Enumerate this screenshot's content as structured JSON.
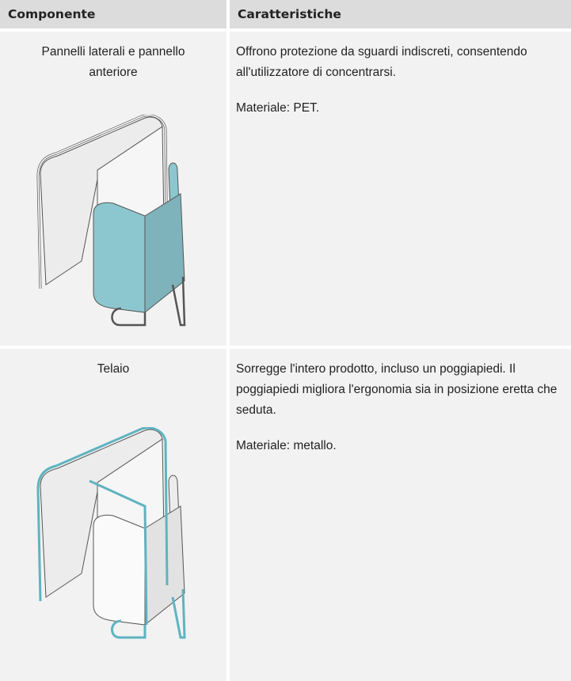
{
  "table": {
    "headers": [
      "Componente",
      "Caratteristiche"
    ],
    "rows": [
      {
        "component": "Pannelli laterali e pannello anteriore",
        "description": [
          "Offrono protezione da sguardi indiscreti, consentendo all'utilizzatore di concentrarsi.",
          "Materiale: PET."
        ]
      },
      {
        "component": "Telaio",
        "description": [
          "Sorregge l'intero prodotto, incluso un poggiapiedi. Il poggiapiedi migliora l'ergonomia sia in posizione eretta che seduta.",
          "Materiale: metallo."
        ]
      }
    ]
  }
}
